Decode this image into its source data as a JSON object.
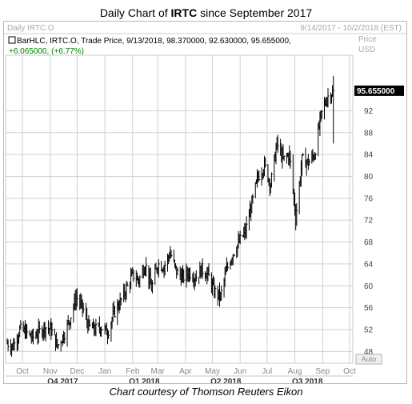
{
  "title_prefix": "Daily Chart of ",
  "title_ticker": "IRTC",
  "title_suffix": " since September 2017",
  "header": {
    "left": "Daily IRTC.O",
    "right": "9/14/2017 - 10/2/2018 (EST)"
  },
  "legend": {
    "line1": "BarHLC, IRTC.O, Trade Price, 9/13/2018, 98.370000, 92.630000, 95.655000,",
    "line2": "+6.065000, (+6.77%)"
  },
  "axis": {
    "price_label": "Price",
    "currency_label": "USD",
    "last_price_tag": "95.655000",
    "auto_label": "Auto"
  },
  "caption": "Chart courtesy of Thomson Reuters Eikon",
  "colors": {
    "bars": "#000000",
    "grid": "#d0d0d0",
    "legend_change": "#008000",
    "tag_bg": "#000000",
    "tag_fg": "#ffffff",
    "header_text": "#a8a8a8"
  },
  "chart_data": {
    "type": "bar",
    "style": "HLC",
    "title": "Daily Chart of IRTC since September 2017",
    "ylim": [
      46,
      102
    ],
    "yticks": [
      48,
      52,
      56,
      60,
      64,
      68,
      72,
      76,
      80,
      84,
      88,
      92
    ],
    "xlim": [
      "2017-09-14",
      "2018-10-02"
    ],
    "month_ticks": [
      {
        "label": "Oct",
        "date": "2017-10-01"
      },
      {
        "label": "Nov",
        "date": "2017-11-01"
      },
      {
        "label": "Dec",
        "date": "2017-12-01"
      },
      {
        "label": "Jan",
        "date": "2018-01-01"
      },
      {
        "label": "Feb",
        "date": "2018-02-01"
      },
      {
        "label": "Mar",
        "date": "2018-03-01"
      },
      {
        "label": "Apr",
        "date": "2018-04-01"
      },
      {
        "label": "May",
        "date": "2018-05-01"
      },
      {
        "label": "Jun",
        "date": "2018-06-01"
      },
      {
        "label": "Jul",
        "date": "2018-07-01"
      },
      {
        "label": "Aug",
        "date": "2018-08-01"
      },
      {
        "label": "Sep",
        "date": "2018-09-01"
      },
      {
        "label": "Oct",
        "date": "2018-10-01"
      }
    ],
    "quarter_ticks": [
      {
        "label": "Q4 2017",
        "date": "2017-11-15"
      },
      {
        "label": "Q1 2018",
        "date": "2018-02-14"
      },
      {
        "label": "Q2 2018",
        "date": "2018-05-16"
      },
      {
        "label": "Q3 2018",
        "date": "2018-08-15"
      }
    ],
    "last_close": 95.655,
    "closes": [
      {
        "date": "2017-09-14",
        "close": 49.5
      },
      {
        "date": "2017-09-21",
        "close": 49.0
      },
      {
        "date": "2017-09-28",
        "close": 52.0
      },
      {
        "date": "2017-10-05",
        "close": 51.5
      },
      {
        "date": "2017-10-12",
        "close": 50.5
      },
      {
        "date": "2017-10-19",
        "close": 51.5
      },
      {
        "date": "2017-10-26",
        "close": 52.5
      },
      {
        "date": "2017-11-02",
        "close": 52.0
      },
      {
        "date": "2017-11-09",
        "close": 49.0
      },
      {
        "date": "2017-11-16",
        "close": 51.0
      },
      {
        "date": "2017-11-23",
        "close": 54.0
      },
      {
        "date": "2017-11-30",
        "close": 58.0
      },
      {
        "date": "2017-12-07",
        "close": 56.0
      },
      {
        "date": "2017-12-14",
        "close": 52.5
      },
      {
        "date": "2017-12-21",
        "close": 52.0
      },
      {
        "date": "2017-12-28",
        "close": 52.5
      },
      {
        "date": "2018-01-04",
        "close": 51.5
      },
      {
        "date": "2018-01-11",
        "close": 55.0
      },
      {
        "date": "2018-01-18",
        "close": 57.0
      },
      {
        "date": "2018-01-25",
        "close": 59.5
      },
      {
        "date": "2018-02-01",
        "close": 62.0
      },
      {
        "date": "2018-02-08",
        "close": 61.0
      },
      {
        "date": "2018-02-15",
        "close": 64.0
      },
      {
        "date": "2018-02-22",
        "close": 59.5
      },
      {
        "date": "2018-03-01",
        "close": 64.0
      },
      {
        "date": "2018-03-08",
        "close": 63.5
      },
      {
        "date": "2018-03-15",
        "close": 66.0
      },
      {
        "date": "2018-03-22",
        "close": 62.5
      },
      {
        "date": "2018-03-29",
        "close": 61.5
      },
      {
        "date": "2018-04-05",
        "close": 62.5
      },
      {
        "date": "2018-04-12",
        "close": 61.5
      },
      {
        "date": "2018-04-19",
        "close": 63.0
      },
      {
        "date": "2018-04-26",
        "close": 62.0
      },
      {
        "date": "2018-05-03",
        "close": 59.0
      },
      {
        "date": "2018-05-10",
        "close": 58.0
      },
      {
        "date": "2018-05-17",
        "close": 63.0
      },
      {
        "date": "2018-05-24",
        "close": 66.0
      },
      {
        "date": "2018-05-31",
        "close": 68.0
      },
      {
        "date": "2018-06-07",
        "close": 70.0
      },
      {
        "date": "2018-06-14",
        "close": 75.0
      },
      {
        "date": "2018-06-21",
        "close": 80.0
      },
      {
        "date": "2018-06-28",
        "close": 82.0
      },
      {
        "date": "2018-07-05",
        "close": 78.5
      },
      {
        "date": "2018-07-12",
        "close": 86.0
      },
      {
        "date": "2018-07-19",
        "close": 83.0
      },
      {
        "date": "2018-07-26",
        "close": 84.0
      },
      {
        "date": "2018-08-02",
        "close": 72.5
      },
      {
        "date": "2018-08-09",
        "close": 83.0
      },
      {
        "date": "2018-08-16",
        "close": 82.5
      },
      {
        "date": "2018-08-23",
        "close": 84.0
      },
      {
        "date": "2018-08-30",
        "close": 91.0
      },
      {
        "date": "2018-09-06",
        "close": 94.5
      },
      {
        "date": "2018-09-13",
        "close": 95.655
      }
    ]
  }
}
